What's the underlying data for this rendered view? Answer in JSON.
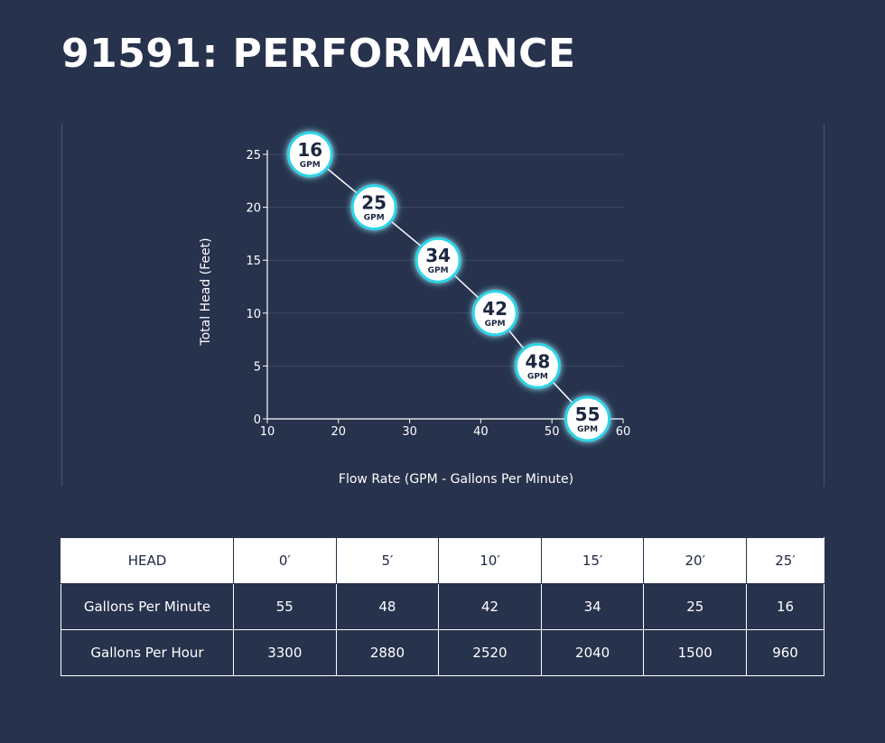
{
  "header": {
    "title": "91591: PERFORMANCE"
  },
  "chart_data": {
    "type": "line",
    "title": "",
    "xlabel": "Flow Rate (GPM - Gallons Per Minute)",
    "ylabel": "Total Head (Feet)",
    "xlim": [
      10,
      60
    ],
    "ylim": [
      0,
      25
    ],
    "x_ticks": [
      "10",
      "20",
      "30",
      "40",
      "50",
      "60"
    ],
    "y_ticks": [
      "0",
      "5",
      "10",
      "15",
      "20",
      "25"
    ],
    "grid": "horizontal",
    "series": [
      {
        "x": [
          16,
          25,
          34,
          42,
          48,
          55
        ],
        "y": [
          25,
          20,
          15,
          10,
          5,
          0
        ],
        "labels": [
          "16",
          "25",
          "34",
          "42",
          "48",
          "55"
        ],
        "unit_label": "GPM"
      }
    ],
    "colors": {
      "marker_glow": "#29d4e8",
      "line": "#ffffff",
      "grid": "#3d4866"
    }
  },
  "table": {
    "header": [
      "HEAD",
      "0′",
      "5′",
      "10′",
      "15′",
      "20′",
      "25′"
    ],
    "rows": [
      {
        "label": "Gallons Per Minute",
        "values": [
          "55",
          "48",
          "42",
          "34",
          "25",
          "16"
        ]
      },
      {
        "label": "Gallons Per Hour",
        "values": [
          "3300",
          "2880",
          "2520",
          "2040",
          "1500",
          "960"
        ]
      }
    ]
  }
}
